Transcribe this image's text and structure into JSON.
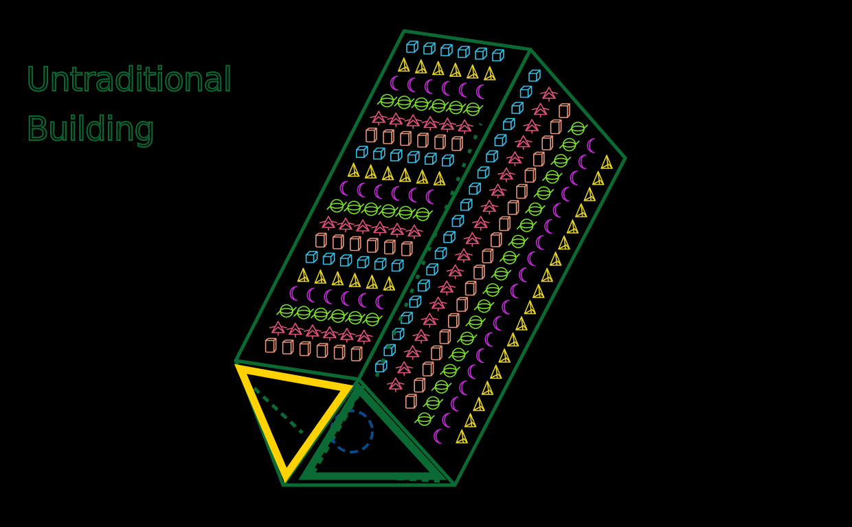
{
  "title": {
    "line1": "Untraditional",
    "line2": "Building"
  },
  "colors": {
    "background": "#000000",
    "frame": "#0b6a34",
    "title_outline": "#0b6a34",
    "base_triangle_front": "#ffd200",
    "dashed_guide": "#0b6a34",
    "dashed_circle": "#0a4a8a"
  },
  "pattern": {
    "symbols": [
      "cube-icon",
      "pyramid-icon",
      "crescent-icon",
      "sphere-icon",
      "flower-icon",
      "cylinder-icon"
    ],
    "symbol_colors": [
      "#39c0e6",
      "#e5d22a",
      "#c02bd4",
      "#7ee22b",
      "#e2557a",
      "#e6967a"
    ]
  }
}
